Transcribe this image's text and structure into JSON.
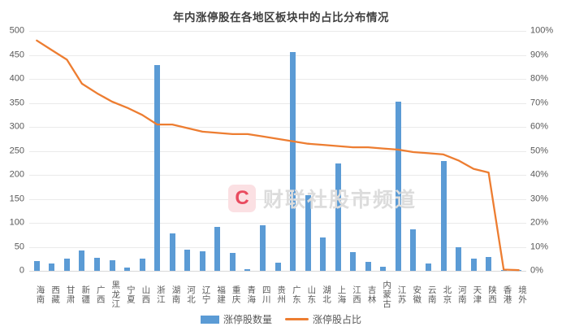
{
  "page": {
    "title": "年内涨停股在各地区板块中的占比分布情况"
  },
  "watermark": {
    "logo_letter": "C",
    "text": "财联社股市频道"
  },
  "legend": {
    "bar_label": "涨停股数量",
    "line_label": "涨停股占比"
  },
  "colors": {
    "bar": "#5B9BD5",
    "line": "#ED7D31",
    "title_text": "#404040",
    "axis_text": "#595959",
    "gridline": "#EAEAEA",
    "baseline": "#D9D9D9",
    "watermark_badge_bg": "#FBE0E3",
    "watermark_badge_letter": "#E94B5F",
    "watermark_text": "#DCDCDC"
  },
  "chart_data": {
    "type": "bar",
    "subtype": "bar+line combo, dual axis",
    "title": "年内涨停股在各地区板块中的占比分布情况",
    "categories": [
      "海南",
      "西藏",
      "甘肃",
      "新疆",
      "广西",
      "黑龙江",
      "宁夏",
      "山西",
      "浙江",
      "湖南",
      "河北",
      "辽宁",
      "福建",
      "重庆",
      "青海",
      "四川",
      "贵州",
      "广东",
      "山东",
      "湖北",
      "上海",
      "江西",
      "吉林",
      "内蒙古",
      "江苏",
      "安徽",
      "云南",
      "北京",
      "河南",
      "天津",
      "陕西",
      "香港",
      "境外"
    ],
    "series": [
      {
        "name": "涨停股数量",
        "type": "bar",
        "axis": "left",
        "values": [
          20,
          16,
          25,
          42,
          27,
          22,
          7,
          25,
          428,
          78,
          44,
          41,
          91,
          38,
          4,
          95,
          17,
          456,
          157,
          70,
          223,
          39,
          19,
          9,
          353,
          87,
          15,
          228,
          49,
          25,
          28,
          2,
          1
        ]
      },
      {
        "name": "涨停股占比",
        "type": "line",
        "axis": "right",
        "unit": "%",
        "values": [
          96,
          92,
          88,
          78,
          74,
          70.5,
          68,
          65,
          61,
          61,
          59.5,
          58,
          57.5,
          57,
          57,
          56,
          55,
          54,
          53,
          52.5,
          52,
          51.5,
          51.5,
          51,
          50.5,
          49.5,
          49,
          48.5,
          46,
          42.5,
          41,
          0.5,
          0.3
        ]
      }
    ],
    "y_left": {
      "min": 0,
      "max": 500,
      "ticks_top_to_bottom": [
        "500",
        "450",
        "400",
        "350",
        "300",
        "250",
        "200",
        "150",
        "100",
        "50",
        "0"
      ]
    },
    "y_right": {
      "min": 0,
      "max": 100,
      "ticks_top_to_bottom": [
        "100%",
        "90%",
        "80%",
        "70%",
        "60%",
        "50%",
        "40%",
        "30%",
        "20%",
        "10%",
        "0%"
      ]
    },
    "grid": true,
    "legend_position": "bottom"
  }
}
